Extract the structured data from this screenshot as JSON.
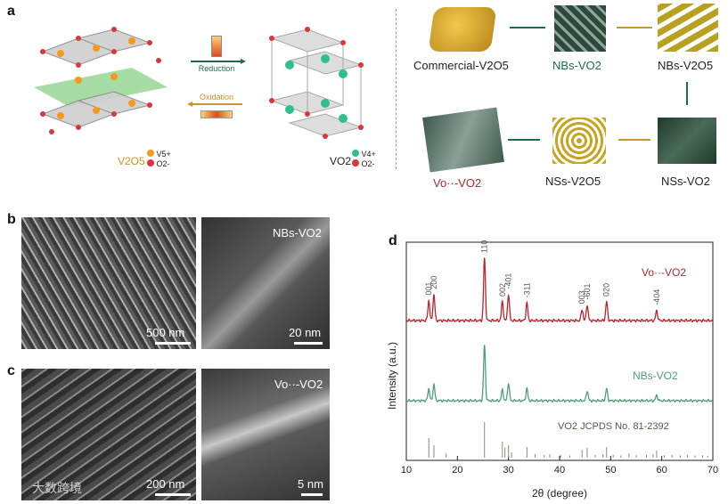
{
  "panels": {
    "a": {
      "letter": "a",
      "left_legend_compound": "V2O5",
      "left_legend_items": [
        "V5+",
        "O2-"
      ],
      "right_legend_compound": "VO2",
      "right_legend_items": [
        "V4+",
        "O2-"
      ],
      "reduction_label": "Reduction",
      "oxidation_label": "Oxidation",
      "flow": [
        "Commercial-V2O5",
        "NBs-VO2",
        "NBs-V2O5",
        "NSs-VO2",
        "NSs-V2O5",
        "Vo··-VO2"
      ]
    },
    "b": {
      "letter": "b",
      "left_scale": "500 nm",
      "right_scale": "20 nm",
      "right_label": "NBs-VO2"
    },
    "c": {
      "letter": "c",
      "left_scale": "200 nm",
      "right_scale": "5 nm",
      "right_label": "Vo··-VO2",
      "watermark": "大数跨境"
    },
    "d": {
      "letter": "d",
      "chart_data": {
        "type": "line",
        "xlabel": "2θ (degree)",
        "ylabel": "Intensity (a.u.)",
        "xlim": [
          10,
          70
        ],
        "xticks": [
          10,
          20,
          30,
          40,
          50,
          60,
          70
        ],
        "series": [
          {
            "name": "Vo··-VO2",
            "color": "#b8252a",
            "peaks": [
              [
                14.4,
                0.32
              ],
              [
                15.4,
                0.42
              ],
              [
                25.3,
                1.0
              ],
              [
                28.8,
                0.3
              ],
              [
                30.0,
                0.42
              ],
              [
                33.6,
                0.28
              ],
              [
                44.4,
                0.18
              ],
              [
                45.4,
                0.25
              ],
              [
                49.2,
                0.3
              ],
              [
                59.0,
                0.16
              ]
            ]
          },
          {
            "name": "NBs-VO2",
            "color": "#4e9e7c",
            "peaks": [
              [
                14.4,
                0.22
              ],
              [
                15.4,
                0.3
              ],
              [
                25.3,
                1.0
              ],
              [
                28.8,
                0.2
              ],
              [
                30.0,
                0.32
              ],
              [
                33.6,
                0.22
              ],
              [
                45.4,
                0.18
              ],
              [
                49.2,
                0.22
              ],
              [
                59.0,
                0.1
              ]
            ]
          }
        ],
        "peak_labels": [
          {
            "x": 14.4,
            "label": "001"
          },
          {
            "x": 15.4,
            "label": "200"
          },
          {
            "x": 25.3,
            "label": "110"
          },
          {
            "x": 28.8,
            "label": "002"
          },
          {
            "x": 30.0,
            "label": "-401"
          },
          {
            "x": 33.6,
            "label": "-311"
          },
          {
            "x": 44.4,
            "label": "003"
          },
          {
            "x": 45.4,
            "label": "-601"
          },
          {
            "x": 49.2,
            "label": "020"
          },
          {
            "x": 59.0,
            "label": "-404"
          }
        ],
        "reference": {
          "label": "VO2  JCPDS No. 81-2392",
          "sticks": [
            [
              14.4,
              0.55
            ],
            [
              15.4,
              0.35
            ],
            [
              17.8,
              0.12
            ],
            [
              25.3,
              1.0
            ],
            [
              28.8,
              0.45
            ],
            [
              29.3,
              0.28
            ],
            [
              30.0,
              0.35
            ],
            [
              30.6,
              0.15
            ],
            [
              33.6,
              0.3
            ],
            [
              35.2,
              0.1
            ],
            [
              37.0,
              0.08
            ],
            [
              38.1,
              0.1
            ],
            [
              40.2,
              0.08
            ],
            [
              42.0,
              0.06
            ],
            [
              44.4,
              0.22
            ],
            [
              45.4,
              0.28
            ],
            [
              47.0,
              0.08
            ],
            [
              48.5,
              0.1
            ],
            [
              49.2,
              0.3
            ],
            [
              50.5,
              0.08
            ],
            [
              52.0,
              0.06
            ],
            [
              53.6,
              0.12
            ],
            [
              55.0,
              0.07
            ],
            [
              57.0,
              0.08
            ],
            [
              58.3,
              0.1
            ],
            [
              59.0,
              0.2
            ],
            [
              60.5,
              0.07
            ],
            [
              62.0,
              0.08
            ],
            [
              63.6,
              0.06
            ],
            [
              65.0,
              0.08
            ],
            [
              66.5,
              0.06
            ],
            [
              68.0,
              0.07
            ],
            [
              69.0,
              0.05
            ]
          ]
        }
      }
    }
  }
}
